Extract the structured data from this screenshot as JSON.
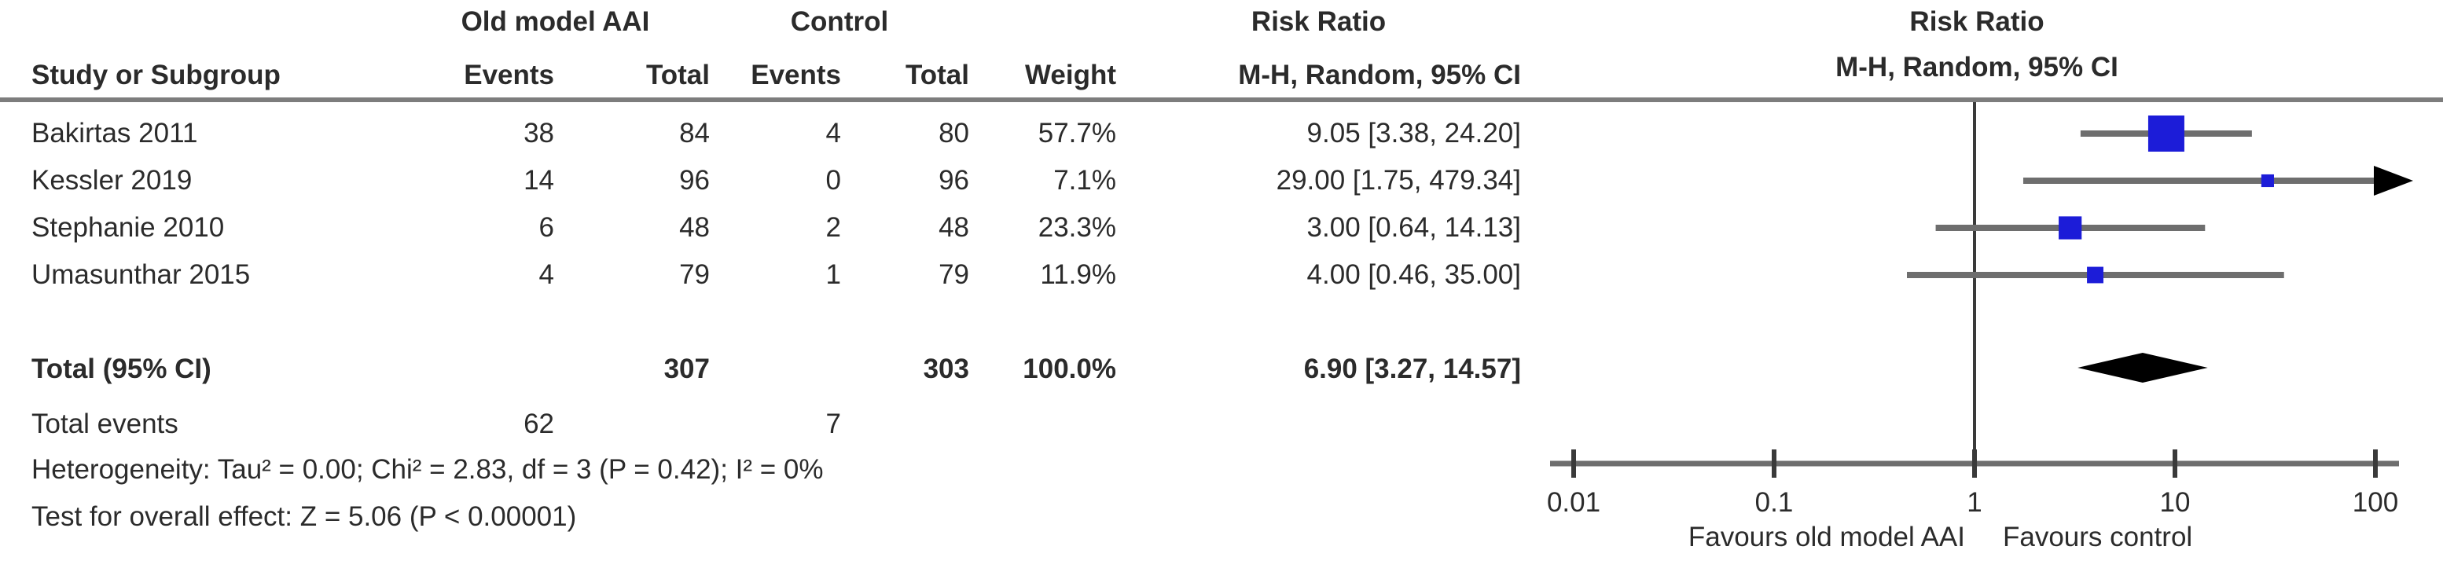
{
  "table": {
    "group_headers": {
      "treatment": "Old model AAI",
      "control": "Control",
      "risk_ratio_left": "Risk Ratio",
      "risk_ratio_right": "Risk Ratio"
    },
    "col_headers": {
      "study": "Study or Subgroup",
      "treat_events": "Events",
      "treat_total": "Total",
      "ctrl_events": "Events",
      "ctrl_total": "Total",
      "weight": "Weight",
      "mh_left": "M-H, Random, 95% CI",
      "mh_right": "M-H, Random, 95% CI"
    }
  },
  "chart_data": {
    "type": "forest",
    "effect_measure": "Risk Ratio",
    "method": "M-H, Random, 95% CI",
    "studies": [
      {
        "name": "Bakirtas 2011",
        "treat_events": "38",
        "treat_total": "84",
        "ctrl_events": "4",
        "ctrl_total": "80",
        "weight": "57.7%",
        "weight_pct": 57.7,
        "rr_label": "9.05 [3.38, 24.20]",
        "rr": 9.05,
        "ci_low": 3.38,
        "ci_high": 24.2
      },
      {
        "name": "Kessler 2019",
        "treat_events": "14",
        "treat_total": "96",
        "ctrl_events": "0",
        "ctrl_total": "96",
        "weight": "7.1%",
        "weight_pct": 7.1,
        "rr_label": "29.00 [1.75, 479.34]",
        "rr": 29.0,
        "ci_low": 1.75,
        "ci_high": 479.34
      },
      {
        "name": "Stephanie 2010",
        "treat_events": "6",
        "treat_total": "48",
        "ctrl_events": "2",
        "ctrl_total": "48",
        "weight": "23.3%",
        "weight_pct": 23.3,
        "rr_label": "3.00 [0.64, 14.13]",
        "rr": 3.0,
        "ci_low": 0.64,
        "ci_high": 14.13
      },
      {
        "name": "Umasunthar 2015",
        "treat_events": "4",
        "treat_total": "79",
        "ctrl_events": "1",
        "ctrl_total": "79",
        "weight": "11.9%",
        "weight_pct": 11.9,
        "rr_label": "4.00 [0.46, 35.00]",
        "rr": 4.0,
        "ci_low": 0.46,
        "ci_high": 35.0
      }
    ],
    "total": {
      "label": "Total (95% CI)",
      "treat_total": "307",
      "ctrl_total": "303",
      "weight": "100.0%",
      "rr_label": "6.90 [3.27, 14.57]",
      "rr": 6.9,
      "ci_low": 3.27,
      "ci_high": 14.57
    },
    "total_events": {
      "label": "Total events",
      "treat": "62",
      "ctrl": "7"
    },
    "heterogeneity": "Heterogeneity: Tau² = 0.00; Chi² = 2.83, df = 3 (P = 0.42); I² = 0%",
    "overall_effect": "Test for overall effect: Z = 5.06 (P < 0.00001)",
    "axis": {
      "scale": "log",
      "min": 0.01,
      "max": 100,
      "null_line": 1,
      "ticks": [
        0.01,
        0.1,
        1,
        10,
        100
      ],
      "tick_labels": [
        "0.01",
        "0.1",
        "1",
        "10",
        "100"
      ],
      "left_label": "Favours old model AAI",
      "right_label": "Favours control"
    },
    "colors": {
      "square": "#1c1cd8",
      "diamond": "#000000",
      "ci_line": "#6e6e6e",
      "axis": "#6e6e6e",
      "null_line": "#3a3a3a",
      "tick": "#3a3a3a",
      "text": "#2b2b2b",
      "rule": "#7d7d7d"
    }
  }
}
